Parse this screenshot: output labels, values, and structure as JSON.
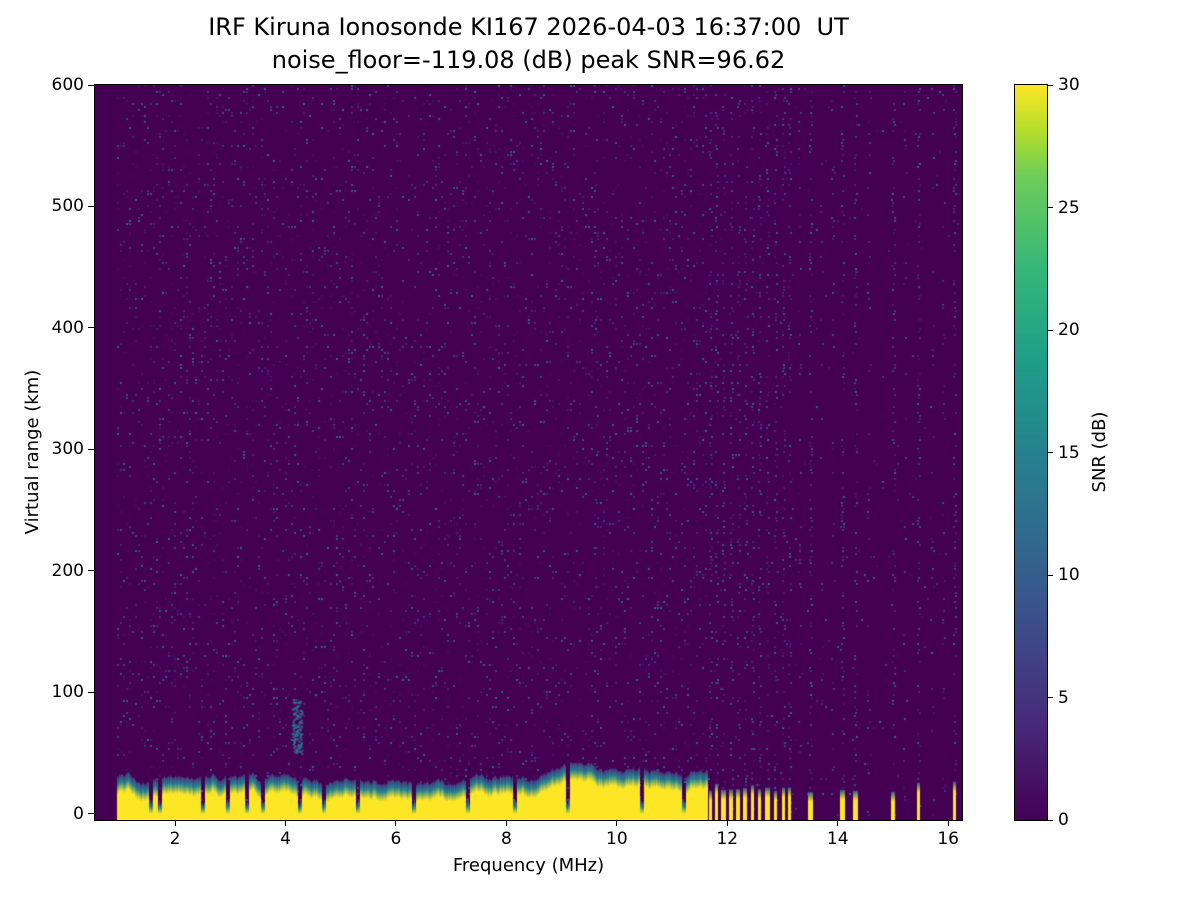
{
  "figure": {
    "background": "#ffffff"
  },
  "chart_data": {
    "type": "heatmap",
    "title_line1": "IRF Kiruna Ionosonde KI167 2026-04-03 16:37:00  UT",
    "title_line2": "noise_floor=-119.08 (dB) peak SNR=96.62",
    "xlabel": "Frequency (MHz)",
    "ylabel": "Virtual range (km)",
    "colorbar_label": "SNR (dB)",
    "station_id": "KI167",
    "timestamp_ut": "2026-04-03 16:37:00",
    "noise_floor_db": -119.08,
    "peak_snr_db": 96.62,
    "xlim": [
      0.55,
      16.25
    ],
    "ylim": [
      -5,
      600
    ],
    "clim": [
      0,
      30
    ],
    "xticks": [
      2,
      4,
      6,
      8,
      10,
      12,
      14,
      16
    ],
    "yticks": [
      0,
      100,
      200,
      300,
      400,
      500,
      600
    ],
    "colorbar_ticks": [
      0,
      5,
      10,
      15,
      20,
      25,
      30
    ],
    "colormap": "viridis",
    "grid": false,
    "legend": "colorbar-right",
    "viridis_stops": [
      [
        0,
        "#440154"
      ],
      [
        0.125,
        "#482878"
      ],
      [
        0.25,
        "#3e4a89"
      ],
      [
        0.375,
        "#31688e"
      ],
      [
        0.5,
        "#26828e"
      ],
      [
        0.625,
        "#1f9e89"
      ],
      [
        0.75,
        "#35b779"
      ],
      [
        0.875,
        "#6dcd59"
      ],
      [
        0.9375,
        "#b4de2c"
      ],
      [
        1,
        "#fde725"
      ]
    ],
    "features": {
      "seed": 167,
      "data_freq_range": [
        0.95,
        16.2
      ],
      "noise_speckle": {
        "density_left": 0.1,
        "density_right": 0.012,
        "max_snr_db": 11
      },
      "ground_clutter": {
        "freq_range": [
          0.95,
          11.65
        ],
        "top_km_base": 30,
        "top_km_min": 24,
        "top_km_max": 42,
        "transition_km": 14,
        "value_db": 30
      },
      "notch_freqs": [
        1.55,
        1.72,
        2.5,
        2.95,
        3.3,
        3.58,
        4.25,
        4.68,
        5.3,
        6.32,
        7.3,
        8.15,
        9.1,
        10.45,
        11.2
      ],
      "stripe_freqs": [
        11.68,
        11.8,
        11.93,
        12.06,
        12.19,
        12.32,
        12.45,
        12.58,
        12.72,
        12.86,
        13.0,
        13.12,
        13.5,
        14.07,
        14.32,
        15.0,
        15.45,
        16.1
      ],
      "faint_column_freqs": [
        9.6,
        13.3,
        13.7,
        13.9,
        14.55,
        15.2,
        15.7,
        15.9
      ],
      "blob": {
        "freq": 4.2,
        "km_range": [
          50,
          95
        ]
      }
    }
  }
}
